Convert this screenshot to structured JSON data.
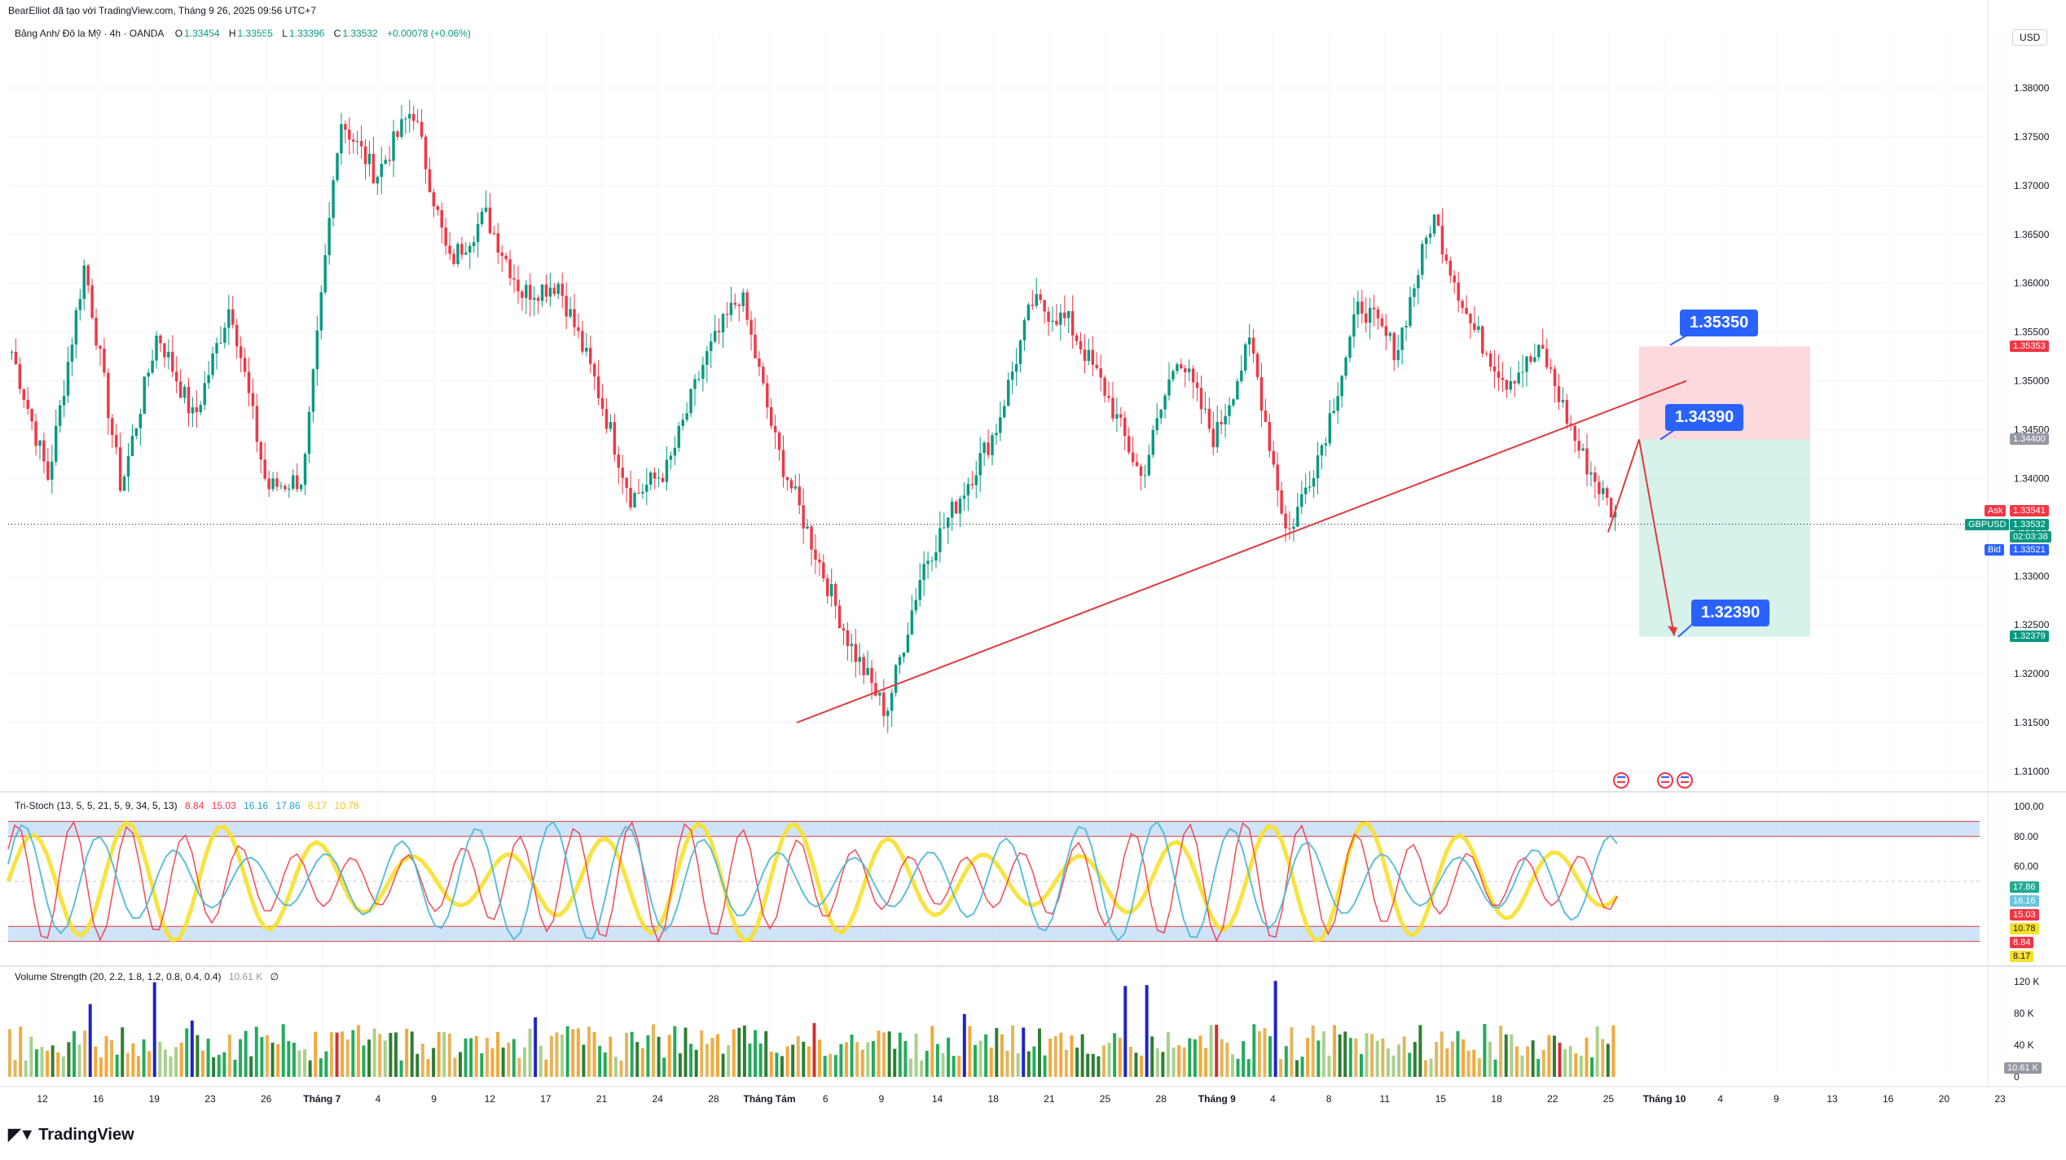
{
  "header": {
    "published": "BearElliot đã tạo với TradingView.com, Tháng 9 26, 2025 09:56 UTC+7",
    "symbol": "Bảng Anh/ Đô la Mỹ · 4h · OANDA",
    "o_label": "O",
    "o_value": "1.33454",
    "h_label": "H",
    "h_value": "1.33555",
    "l_label": "L",
    "l_value": "1.33396",
    "c_label": "C",
    "c_value": "1.33532",
    "change": "+0.00078 (+0.06%)",
    "currency": "USD"
  },
  "price_axis": [
    "1.38000",
    "1.37500",
    "1.37000",
    "1.36500",
    "1.36000",
    "1.35500",
    "1.35000",
    "1.34500",
    "1.34000",
    "1.33500",
    "1.33000",
    "1.32500",
    "1.32000",
    "1.31500",
    "1.31000"
  ],
  "price_tags": {
    "stop": "1.35353",
    "entry": "1.34400",
    "ask_label": "Ask",
    "ask": "1.33541",
    "last_symbol": "GBPUSD",
    "last": "1.33532",
    "countdown": "02:03:38",
    "bid_label": "Bid",
    "bid": "1.33521",
    "target": "1.32379"
  },
  "callouts": {
    "stop": "1.35350",
    "entry": "1.34390",
    "target": "1.32390"
  },
  "stoch": {
    "title": "Tri-Stoch (13, 5, 5, 21, 5, 9, 34, 5, 13)",
    "values": [
      "8.84",
      "15.03",
      "16.16",
      "17.86",
      "8.17",
      "10.78"
    ],
    "axis": [
      "100.00",
      "80.00",
      "60.00"
    ],
    "tags": [
      "17.86",
      "16.16",
      "15.03",
      "10.78",
      "8.84",
      "8.17"
    ],
    "tag_colors": [
      "#22ab94",
      "#6bc6e0",
      "#f23645",
      "#f7e02b",
      "#f23645",
      "#f7e02b"
    ]
  },
  "volume": {
    "title": "Volume Strength (20, 2.2, 1.8, 1.2, 0.8, 0.4, 0.4)",
    "value": "10.61 K",
    "extra": "∅",
    "axis": [
      "120 K",
      "80 K",
      "40 K",
      "0"
    ],
    "tag": "10.61 K"
  },
  "time_axis": [
    "12",
    "16",
    "19",
    "23",
    "26",
    "Tháng 7",
    "4",
    "9",
    "12",
    "17",
    "21",
    "24",
    "28",
    "Tháng Tám",
    "6",
    "9",
    "14",
    "18",
    "21",
    "25",
    "28",
    "Tháng 9",
    "4",
    "8",
    "11",
    "15",
    "18",
    "22",
    "25",
    "Tháng 10",
    "4",
    "9",
    "13",
    "16",
    "20",
    "23"
  ],
  "branding": "TradingView",
  "colors": {
    "up": "#089981",
    "down": "#f23645",
    "trend": "#e03a3e",
    "accent": "#2962ff",
    "stop_zone": "#fbd0d3",
    "target_zone": "#cdeee6"
  },
  "chart_data": {
    "type": "candlestick",
    "series": [
      {
        "name": "GBPUSD 4h",
        "anchor_prices": [
          1.353,
          1.34,
          1.362,
          1.339,
          1.355,
          1.346,
          1.358,
          1.339,
          1.34,
          1.377,
          1.371,
          1.378,
          1.362,
          1.367,
          1.359,
          1.36,
          1.35,
          1.338,
          1.341,
          1.352,
          1.359,
          1.343,
          1.333,
          1.323,
          1.316,
          1.331,
          1.338,
          1.345,
          1.358,
          1.356,
          1.349,
          1.34,
          1.353,
          1.344,
          1.354,
          1.334,
          1.344,
          1.358,
          1.353,
          1.367,
          1.356,
          1.35,
          1.353,
          1.343,
          1.336
        ]
      }
    ],
    "trendline": {
      "from_price": 1.315,
      "to_price": 1.35
    },
    "position": {
      "stop": 1.35353,
      "entry": 1.344,
      "target": 1.32379
    },
    "projection": [
      1.3345,
      1.344,
      1.3239
    ]
  }
}
